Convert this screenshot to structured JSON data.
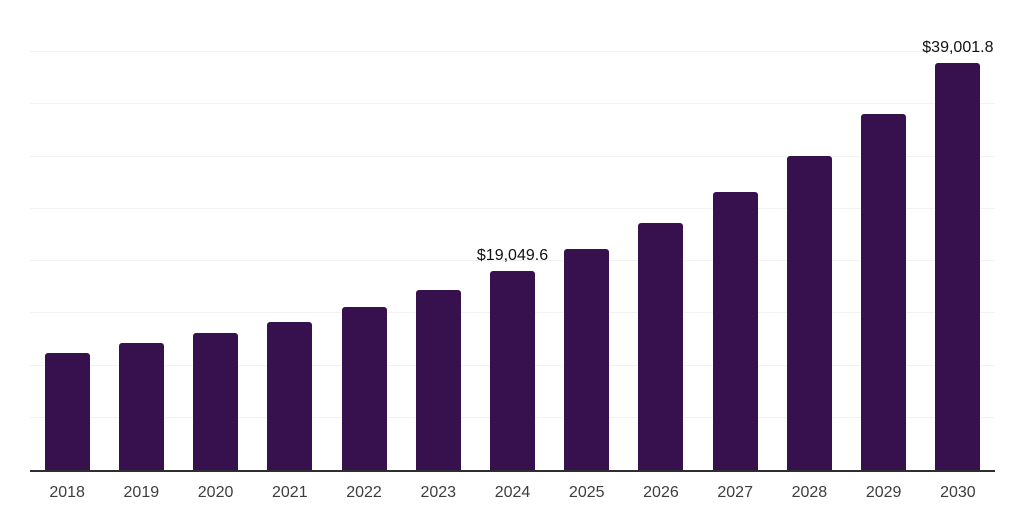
{
  "chart": {
    "colors": {
      "background": "#ffffff",
      "bar": "#36114d",
      "grid": "#f2f2f2",
      "axis": "#2e2e2e",
      "data_label": "#111111",
      "tick_label": "#3d3d3d"
    }
  },
  "chart_data": {
    "type": "bar",
    "title": "",
    "xlabel": "",
    "ylabel": "",
    "categories": [
      "2018",
      "2019",
      "2020",
      "2021",
      "2022",
      "2023",
      "2024",
      "2025",
      "2026",
      "2027",
      "2028",
      "2029",
      "2030"
    ],
    "values": [
      11250,
      12150,
      13100,
      14150,
      15650,
      17250,
      19049.6,
      21150,
      23650,
      26600,
      30050,
      34100,
      39001.8
    ],
    "labeled_points": [
      {
        "category": "2024",
        "label": "$19,049.6"
      },
      {
        "category": "2030",
        "label": "$39,001.8"
      }
    ],
    "ylim": [
      0,
      45000
    ],
    "gridline_step": 5000,
    "grid": "horizontal-only",
    "y_axis_tick_labels_visible": false,
    "legend_position": "none",
    "notes": "Only 2024 and 2030 bars carry data labels; remaining values estimated from gridlines (5,000-unit steps)."
  }
}
